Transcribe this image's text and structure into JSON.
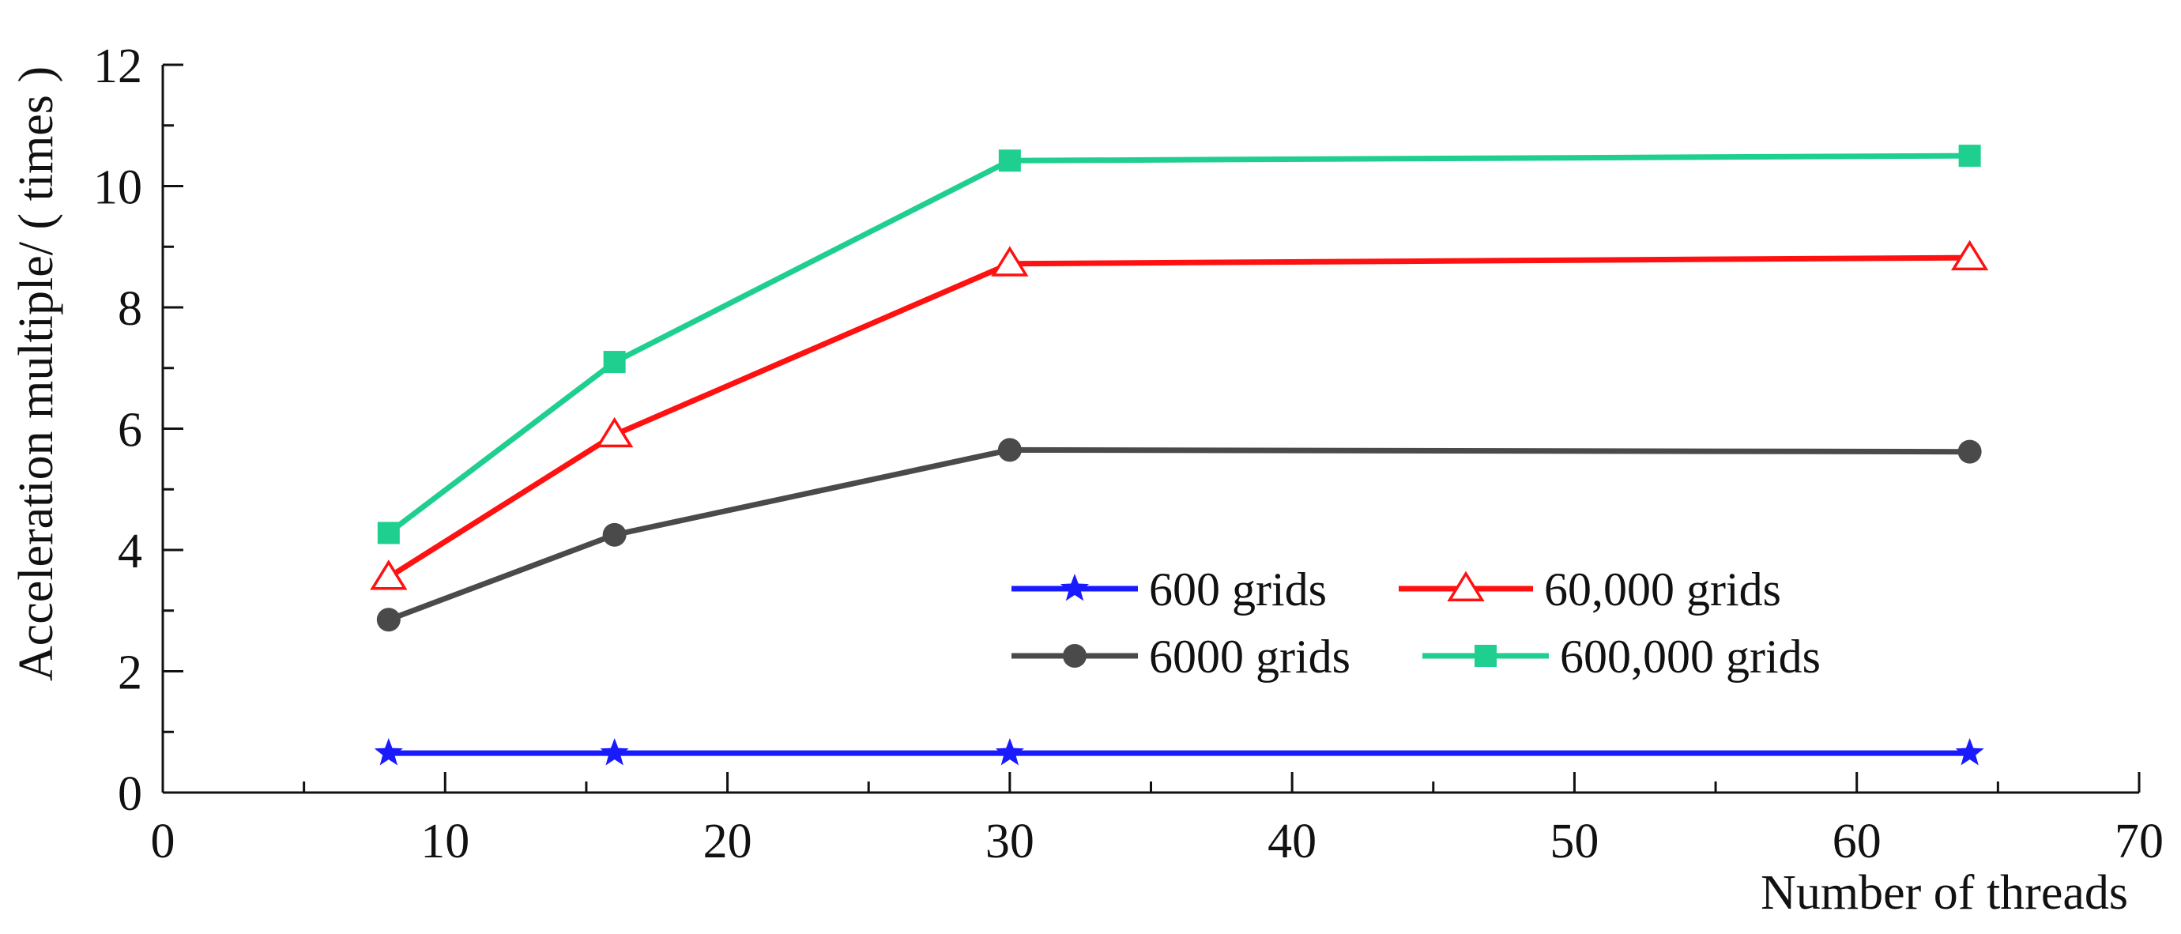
{
  "chart_data": {
    "type": "line",
    "xlabel": "Number of threads",
    "ylabel": "Acceleration multiple/ ( times )",
    "xlim": [
      0,
      70
    ],
    "ylim": [
      0,
      12
    ],
    "x_ticks": [
      0,
      10,
      20,
      30,
      40,
      50,
      60,
      70
    ],
    "x_tick_labels": [
      "0",
      "10",
      "20",
      "30",
      "40",
      "50",
      "60",
      "70"
    ],
    "y_ticks": [
      0,
      2,
      4,
      6,
      8,
      10,
      12
    ],
    "y_tick_labels": [
      "0",
      "2",
      "4",
      "6",
      "8",
      "10",
      "12"
    ],
    "x": [
      8,
      16,
      30,
      64
    ],
    "legend_position": "lower-middle, two columns",
    "series": [
      {
        "name": "600 grids",
        "values": [
          0.65,
          0.65,
          0.65,
          0.65
        ],
        "color": "#1a1aff",
        "marker": "star"
      },
      {
        "name": "60,000 grids",
        "values": [
          3.55,
          5.9,
          8.72,
          8.82
        ],
        "color": "#ff1111",
        "marker": "triangle-open"
      },
      {
        "name": "6000  grids",
        "values": [
          2.85,
          4.25,
          5.65,
          5.62
        ],
        "color": "#4a4a4a",
        "marker": "circle"
      },
      {
        "name": "600,000 grids",
        "values": [
          4.28,
          7.1,
          10.42,
          10.5
        ],
        "color": "#1fcf8f",
        "marker": "square"
      }
    ]
  }
}
